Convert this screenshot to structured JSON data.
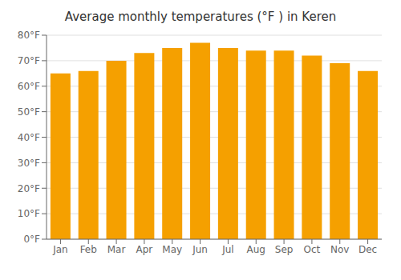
{
  "chart_data": {
    "type": "bar",
    "title": "Average monthly temperatures (°F ) in Keren",
    "categories": [
      "Jan",
      "Feb",
      "Mar",
      "Apr",
      "May",
      "Jun",
      "Jul",
      "Aug",
      "Sep",
      "Oct",
      "Nov",
      "Dec"
    ],
    "values": [
      65,
      66,
      70,
      73,
      75,
      77,
      75,
      74,
      74,
      72,
      69,
      66
    ],
    "color": "#F5A000",
    "ylim": [
      0,
      80
    ],
    "yticks": [
      {
        "value": 0,
        "label": "0°F"
      },
      {
        "value": 10,
        "label": "10°F"
      },
      {
        "value": 20,
        "label": "20°F"
      },
      {
        "value": 30,
        "label": "30°F"
      },
      {
        "value": 40,
        "label": "40°F"
      },
      {
        "value": 50,
        "label": "50°F"
      },
      {
        "value": 60,
        "label": "60°F"
      },
      {
        "value": 70,
        "label": "70°F"
      },
      {
        "value": 80,
        "label": "80°F"
      }
    ],
    "grid": true
  }
}
